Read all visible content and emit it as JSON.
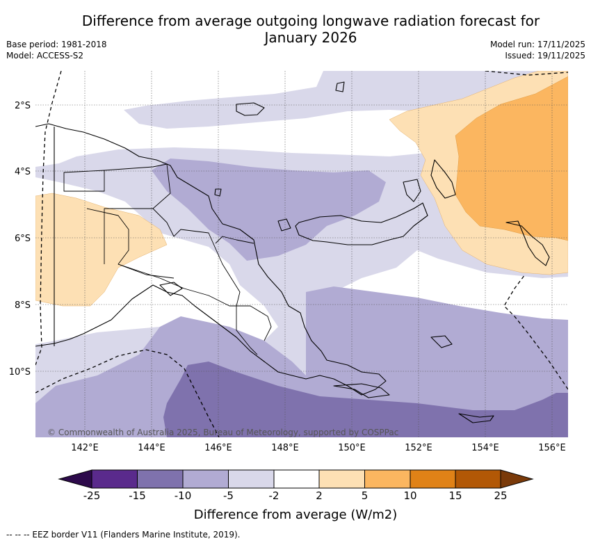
{
  "title_line1": "Difference from average outgoing longwave radiation forecast for",
  "title_line2": "January 2026",
  "base_period": "Base period: 1981-2018",
  "model": "Model: ACCESS-S2",
  "model_run": "Model run: 17/11/2025",
  "issued": "Issued: 19/11/2025",
  "copyright": "© Commonwealth of Australia 2025, Bureau of Meteorology, supported by COSPPac",
  "lat_labels": [
    "2°S",
    "4°S",
    "6°S",
    "8°S",
    "10°S"
  ],
  "lon_labels": [
    "142°E",
    "144°E",
    "146°E",
    "148°E",
    "150°E",
    "152°E",
    "154°E",
    "156°E"
  ],
  "colorbar": {
    "ticks": [
      "-25",
      "-15",
      "-10",
      "-5",
      "-2",
      "2",
      "5",
      "10",
      "15",
      "25"
    ],
    "colors": {
      "lt_neg25": "#2d0a4b",
      "neg25_neg15": "#5a2a8c",
      "neg15_neg10": "#7f72ad",
      "neg10_neg5": "#b1abd3",
      "neg5_neg2": "#d9d8ea",
      "neg2_2": "#ffffff",
      "p2_5": "#fde0b4",
      "p5_10": "#fbb660",
      "p10_15": "#e08217",
      "p15_25": "#b25806",
      "gt_25": "#7a3a09"
    },
    "label": "Difference from average (W/m2)"
  },
  "footnote": "--  --  -- EEZ border V11 (Flanders Marine Institute, 2019)."
}
